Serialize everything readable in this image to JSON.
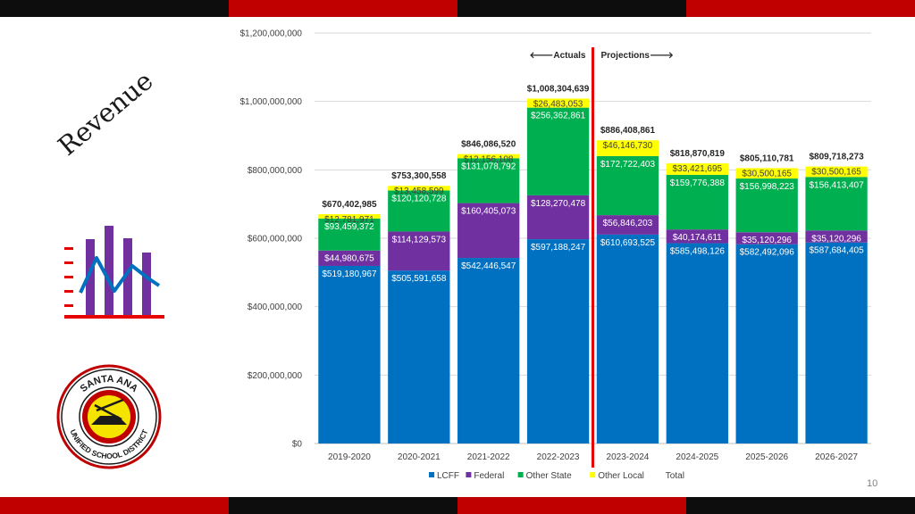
{
  "slide": {
    "title": "Revenue",
    "page_number": "10",
    "colors": {
      "strip_dark": "#0d0d0d",
      "strip_red": "#c00000",
      "divider": "#e60000"
    }
  },
  "logo": {
    "text_top": "SANTA ANA",
    "text_bottom": "UNIFIED SCHOOL DISTRICT"
  },
  "chart_data": {
    "type": "bar",
    "stacked": true,
    "title": "",
    "xlabel": "",
    "ylabel": "",
    "ylim": [
      0,
      1200000000
    ],
    "yticks": [
      0,
      200000000,
      400000000,
      600000000,
      800000000,
      1000000000,
      1200000000
    ],
    "ytick_labels": [
      "$0",
      "$200,000,000",
      "$400,000,000",
      "$600,000,000",
      "$800,000,000",
      "$1,000,000,000",
      "$1,200,000,000"
    ],
    "grid": true,
    "legend_position": "bottom",
    "categories": [
      "2019-2020",
      "2020-2021",
      "2021-2022",
      "2022-2023",
      "2023-2024",
      "2024-2025",
      "2025-2026",
      "2026-2027"
    ],
    "series": [
      {
        "name": "LCFF",
        "color": "#0070c0",
        "values": [
          519180967,
          505591658,
          542446547,
          597188247,
          610693525,
          585498126,
          582492096,
          587684405
        ],
        "labels": [
          "$519,180,967",
          "$505,591,658",
          "$542,446,547",
          "$597,188,247",
          "$610,693,525",
          "$585,498,126",
          "$582,492,096",
          "$587,684,405"
        ]
      },
      {
        "name": "Federal",
        "color": "#7030a0",
        "values": [
          44980675,
          114129573,
          160405073,
          128270478,
          56846203,
          40174611,
          35120296,
          35120296
        ],
        "labels": [
          "$44,980,675",
          "$114,129,573",
          "$160,405,073",
          "$128,270,478",
          "$56,846,203",
          "$40,174,611",
          "$35,120,296",
          "$35,120,296"
        ]
      },
      {
        "name": "Other State",
        "color": "#00b050",
        "values": [
          93459372,
          120120728,
          131078792,
          256362861,
          172722403,
          159776388,
          156998223,
          156413407
        ],
        "labels": [
          "$93,459,372",
          "$120,120,728",
          "$131,078,792",
          "$256,362,861",
          "$172,722,403",
          "$159,776,388",
          "$156,998,223",
          "$156,413,407"
        ]
      },
      {
        "name": "Other Local",
        "color": "#ffff00",
        "values": [
          12781971,
          13458599,
          12156108,
          26483053,
          46146730,
          33421695,
          30500165,
          30500165
        ],
        "labels": [
          "$12,781,971",
          "$13,458,599",
          "$12,156,108",
          "$26,483,053",
          "$46,146,730",
          "$33,421,695",
          "$30,500,165",
          "$30,500,165"
        ]
      }
    ],
    "totals": {
      "name": "Total",
      "values": [
        670402985,
        753300558,
        846086520,
        1008304639,
        886408861,
        818870819,
        805110781,
        809718273
      ],
      "labels": [
        "$670,402,985",
        "$753,300,558",
        "$846,086,520",
        "$1,008,304,639",
        "$886,408,861",
        "$818,870,819",
        "$805,110,781",
        "$809,718,273"
      ]
    },
    "annotations": {
      "actuals": "🡐Actuals",
      "projections": "Projections🡒",
      "divider_after_category": "2022-2023"
    }
  }
}
